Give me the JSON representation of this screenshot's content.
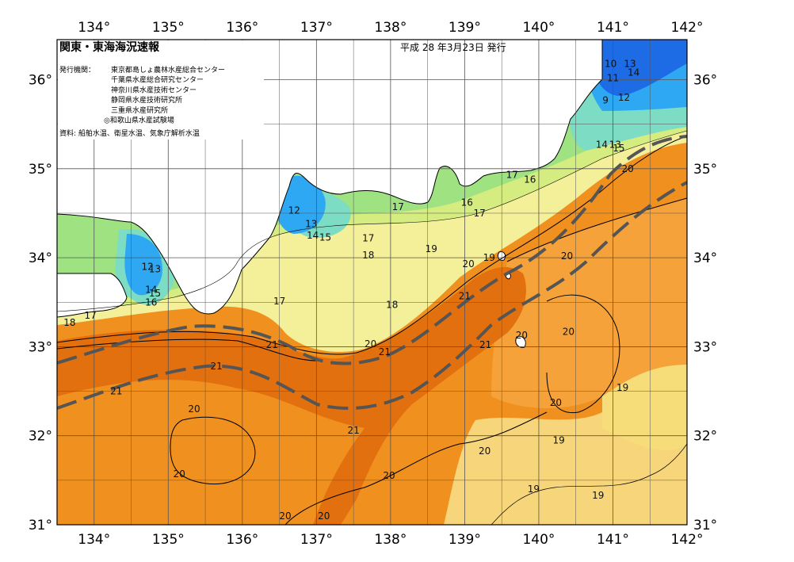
{
  "title": "関東・東海海況速報",
  "issue_date": "平成 28 年3月23日 発行",
  "agencies_label": "発行機関：",
  "agencies": [
    "東京都島しょ農林水産総合センター",
    "千葉県水産総合研究センター",
    "神奈川県水産技術センター",
    "静岡県水産技術研究所",
    "三重県水産研究所",
    "◎和歌山県水産試験場"
  ],
  "source": "資料: 船舶水温、衛星水温、気象庁解析水温",
  "lon_ticks": [
    "134°",
    "135°",
    "136°",
    "137°",
    "138°",
    "139°",
    "140°",
    "141°",
    "142°"
  ],
  "lat_ticks": [
    "36°",
    "35°",
    "34°",
    "33°",
    "32°",
    "31°"
  ],
  "contour_labels": [
    {
      "t": "10",
      "lon": 140.97,
      "lat": 36.18
    },
    {
      "t": "13",
      "lon": 141.23,
      "lat": 36.18
    },
    {
      "t": "14",
      "lon": 141.28,
      "lat": 36.08
    },
    {
      "t": "11",
      "lon": 141.0,
      "lat": 36.02
    },
    {
      "t": "9",
      "lon": 140.9,
      "lat": 35.77
    },
    {
      "t": "12",
      "lon": 141.15,
      "lat": 35.8
    },
    {
      "t": "14",
      "lon": 140.85,
      "lat": 35.27
    },
    {
      "t": "13",
      "lon": 141.03,
      "lat": 35.27
    },
    {
      "t": "15",
      "lon": 141.08,
      "lat": 35.23
    },
    {
      "t": "20",
      "lon": 141.2,
      "lat": 35.0
    },
    {
      "t": "17",
      "lon": 139.64,
      "lat": 34.93
    },
    {
      "t": "16",
      "lon": 139.88,
      "lat": 34.88
    },
    {
      "t": "16",
      "lon": 139.03,
      "lat": 34.62
    },
    {
      "t": "17",
      "lon": 139.2,
      "lat": 34.5
    },
    {
      "t": "17",
      "lon": 138.1,
      "lat": 34.57
    },
    {
      "t": "12",
      "lon": 136.7,
      "lat": 34.53
    },
    {
      "t": "13",
      "lon": 136.93,
      "lat": 34.38
    },
    {
      "t": "14",
      "lon": 136.95,
      "lat": 34.25
    },
    {
      "t": "15",
      "lon": 137.12,
      "lat": 34.23
    },
    {
      "t": "17",
      "lon": 137.7,
      "lat": 34.22
    },
    {
      "t": "19",
      "lon": 138.55,
      "lat": 34.1
    },
    {
      "t": "18",
      "lon": 137.7,
      "lat": 34.03
    },
    {
      "t": "19",
      "lon": 139.33,
      "lat": 34.0
    },
    {
      "t": "20",
      "lon": 139.05,
      "lat": 33.93
    },
    {
      "t": "20",
      "lon": 140.38,
      "lat": 34.02
    },
    {
      "t": "12",
      "lon": 134.72,
      "lat": 33.9
    },
    {
      "t": "13",
      "lon": 134.82,
      "lat": 33.87
    },
    {
      "t": "14",
      "lon": 134.77,
      "lat": 33.64
    },
    {
      "t": "15",
      "lon": 134.82,
      "lat": 33.6
    },
    {
      "t": "16",
      "lon": 134.77,
      "lat": 33.5
    },
    {
      "t": "17",
      "lon": 136.5,
      "lat": 33.51
    },
    {
      "t": "21",
      "lon": 139.0,
      "lat": 33.57
    },
    {
      "t": "18",
      "lon": 133.67,
      "lat": 33.27
    },
    {
      "t": "17",
      "lon": 133.95,
      "lat": 33.35
    },
    {
      "t": "18",
      "lon": 138.02,
      "lat": 33.47
    },
    {
      "t": "20",
      "lon": 140.4,
      "lat": 33.17
    },
    {
      "t": "20",
      "lon": 139.77,
      "lat": 33.13
    },
    {
      "t": "21",
      "lon": 136.4,
      "lat": 33.02
    },
    {
      "t": "20",
      "lon": 137.73,
      "lat": 33.03
    },
    {
      "t": "21",
      "lon": 137.92,
      "lat": 32.94
    },
    {
      "t": "21",
      "lon": 139.28,
      "lat": 33.02
    },
    {
      "t": "21",
      "lon": 135.65,
      "lat": 32.78
    },
    {
      "t": "21",
      "lon": 134.3,
      "lat": 32.5
    },
    {
      "t": "19",
      "lon": 141.13,
      "lat": 32.54
    },
    {
      "t": "20",
      "lon": 140.23,
      "lat": 32.37
    },
    {
      "t": "20",
      "lon": 135.35,
      "lat": 32.3
    },
    {
      "t": "21",
      "lon": 137.5,
      "lat": 32.06
    },
    {
      "t": "19",
      "lon": 140.27,
      "lat": 31.95
    },
    {
      "t": "20",
      "lon": 139.27,
      "lat": 31.83
    },
    {
      "t": "20",
      "lon": 135.15,
      "lat": 31.57
    },
    {
      "t": "20",
      "lon": 137.98,
      "lat": 31.55
    },
    {
      "t": "19",
      "lon": 139.93,
      "lat": 31.4
    },
    {
      "t": "19",
      "lon": 140.8,
      "lat": 31.33
    },
    {
      "t": "20",
      "lon": 136.58,
      "lat": 31.1
    },
    {
      "t": "20",
      "lon": 137.1,
      "lat": 31.1
    }
  ],
  "colors": {
    "land": "#ffffff",
    "coast": "#000000",
    "grid": "#555555",
    "current_axis": "#555555",
    "t9": "#1e6be6",
    "t12": "#2ea8f2",
    "t14": "#52cdec",
    "t15": "#7cdcc4",
    "t16": "#9ee282",
    "t17": "#d4ec80",
    "t18": "#f4f09a",
    "t19": "#f7dc7a",
    "t20": "#f5a23a",
    "t21": "#e2700e",
    "t20b": "#f0901e"
  }
}
